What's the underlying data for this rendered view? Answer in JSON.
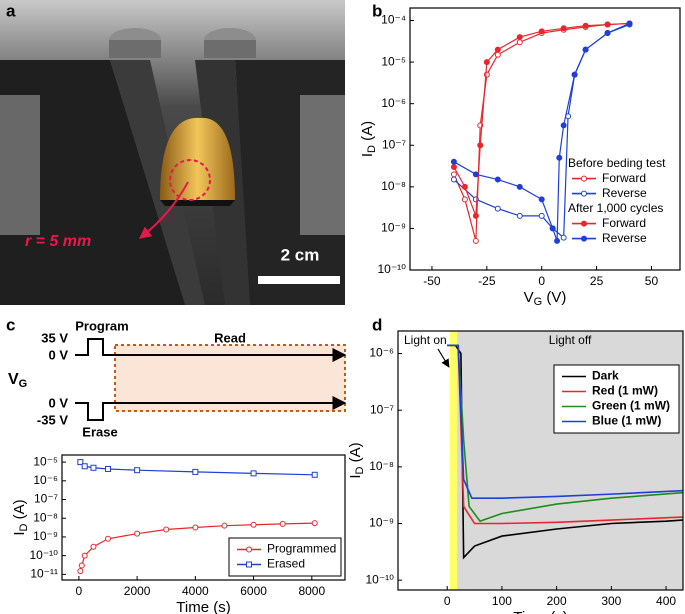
{
  "figure": {
    "panel_labels": [
      "a",
      "b",
      "c",
      "d"
    ],
    "photo": {
      "radius_label": "r = 5 mm",
      "scale_label": "2 cm"
    }
  },
  "diagram_c": {
    "program": "Program",
    "read": "Read",
    "erase": "Erase",
    "v_high": "35 V",
    "v_zero_top": "0 V",
    "v_zero_bottom": "0 V",
    "v_low": "-35 V",
    "vg": {
      "main": "V",
      "sub": "G"
    }
  },
  "chart_data": [
    {
      "type": "line",
      "log_y": true,
      "x_label": {
        "main": "V",
        "sub": "G",
        "unit": " (V)"
      },
      "y_label": {
        "main": "I",
        "sub": "D",
        "unit": " (A)"
      },
      "xlim": [
        -60,
        63
      ],
      "ylim": [
        1e-10,
        0.0002
      ],
      "xticks": [
        -50,
        -25,
        0,
        25,
        50
      ],
      "yticks": [
        {
          "value": 1e-10,
          "label": "10⁻¹⁰"
        },
        {
          "value": 1e-09,
          "label": "10⁻⁹"
        },
        {
          "value": 1e-08,
          "label": "10⁻⁸"
        },
        {
          "value": 1e-07,
          "label": "10⁻⁷"
        },
        {
          "value": 1e-06,
          "label": "10⁻⁶"
        },
        {
          "value": 1e-05,
          "label": "10⁻⁵"
        },
        {
          "value": 0.0001,
          "label": "10⁻⁴"
        }
      ],
      "legend": "right",
      "legend_frame": false,
      "legend_groups": [
        "Before beding test",
        "After 1,000 cycles"
      ],
      "series": [
        {
          "name": "Forward",
          "group": 0,
          "color": "#e8262b",
          "marker": "open-circle",
          "x": [
            -40,
            -35,
            -30,
            -28,
            -25,
            -20,
            -10,
            0,
            10,
            20,
            30,
            40
          ],
          "values": [
            2e-08,
            5e-09,
            5e-10,
            3e-07,
            5e-06,
            1.5e-05,
            3e-05,
            5e-05,
            6e-05,
            7e-05,
            8e-05,
            8.5e-05
          ]
        },
        {
          "name": "Reverse",
          "group": 0,
          "color": "#1f3fd6",
          "marker": "open-circle",
          "x": [
            40,
            30,
            20,
            15,
            12,
            10,
            5,
            0,
            -10,
            -20,
            -30,
            -40
          ],
          "values": [
            8e-05,
            5e-05,
            2e-05,
            5e-06,
            5e-07,
            6e-10,
            1e-09,
            2e-09,
            2e-09,
            3e-09,
            5e-09,
            1.5e-08
          ]
        },
        {
          "name": "Forward",
          "group": 1,
          "color": "#e8262b",
          "marker": "filled-circle",
          "x": [
            -40,
            -35,
            -30,
            -28,
            -25,
            -20,
            -10,
            0,
            10,
            20,
            30,
            40
          ],
          "values": [
            3e-08,
            1e-08,
            2e-09,
            1e-07,
            1e-05,
            2e-05,
            4e-05,
            5.5e-05,
            6.5e-05,
            7.5e-05,
            8e-05,
            8.5e-05
          ]
        },
        {
          "name": "Reverse",
          "group": 1,
          "color": "#1f3fd6",
          "marker": "filled-circle",
          "x": [
            40,
            30,
            20,
            15,
            10,
            8,
            7,
            5,
            0,
            -10,
            -20,
            -30,
            -40
          ],
          "values": [
            8.5e-05,
            5e-05,
            2e-05,
            5e-06,
            3e-07,
            5e-08,
            5e-10,
            1e-09,
            5e-09,
            1e-08,
            1.5e-08,
            2e-08,
            4e-08
          ]
        }
      ]
    },
    {
      "type": "line",
      "log_y": true,
      "x_label": {
        "main": "Time (s)"
      },
      "y_label": {
        "main": "I",
        "sub": "D",
        "unit": " (A)"
      },
      "xlim": [
        -580,
        9140
      ],
      "ylim": [
        5e-12,
        2.4e-05
      ],
      "xticks": [
        0,
        2000,
        4000,
        6000,
        8000
      ],
      "yticks": [
        {
          "value": 1e-11,
          "label": "10⁻¹¹"
        },
        {
          "value": 1e-10,
          "label": "10⁻¹⁰"
        },
        {
          "value": 1e-09,
          "label": "10⁻⁹"
        },
        {
          "value": 1e-08,
          "label": "10⁻⁸"
        },
        {
          "value": 1e-07,
          "label": "10⁻⁷"
        },
        {
          "value": 1e-06,
          "label": "10⁻⁶"
        },
        {
          "value": 1e-05,
          "label": "10⁻⁵"
        }
      ],
      "legend": "lower right",
      "legend_frame": true,
      "series": [
        {
          "name": "Programmed",
          "color": "#e8262b",
          "marker": "open-circle",
          "x": [
            50,
            100,
            200,
            500,
            1000,
            2000,
            3000,
            4000,
            5000,
            6000,
            7000,
            8100
          ],
          "values": [
            1.5e-11,
            3e-11,
            1e-10,
            3e-10,
            8e-10,
            1.5e-09,
            2.5e-09,
            3.2e-09,
            4e-09,
            4.5e-09,
            5e-09,
            5.5e-09
          ]
        },
        {
          "name": "Erased",
          "color": "#1f3fd6",
          "marker": "open-square",
          "x": [
            50,
            200,
            500,
            1000,
            2000,
            4000,
            6000,
            8100
          ],
          "values": [
            1e-05,
            6e-06,
            5e-06,
            4.3e-06,
            3.7e-06,
            3e-06,
            2.5e-06,
            2.1e-06
          ]
        }
      ]
    },
    {
      "type": "line",
      "log_y": true,
      "x_label": {
        "main": "Time (s)"
      },
      "y_label": {
        "main": "I",
        "sub": "D",
        "unit": " (A)"
      },
      "xlim": [
        -90,
        431
      ],
      "ylim": [
        6.7e-11,
        2.5e-06
      ],
      "xticks": [
        0,
        100,
        200,
        300,
        400
      ],
      "yticks": [
        {
          "value": 1e-10,
          "label": "10⁻¹⁰"
        },
        {
          "value": 1e-09,
          "label": "10⁻⁹"
        },
        {
          "value": 1e-08,
          "label": "10⁻⁸"
        },
        {
          "value": 1e-07,
          "label": "10⁻⁷"
        },
        {
          "value": 1e-06,
          "label": "10⁻⁶"
        }
      ],
      "shaded_regions": [
        {
          "label": "Light on",
          "range": [
            5,
            18
          ],
          "color": "#ffff66"
        },
        {
          "label": "Light off",
          "range": [
            18,
            431
          ],
          "color": "#d9d9d9"
        }
      ],
      "legend": "upper right",
      "legend_frame": true,
      "legend_bold": true,
      "series": [
        {
          "name": "Dark",
          "color": "#000000",
          "x": [
            0,
            15,
            25,
            30,
            50,
            100,
            200,
            300,
            400,
            430
          ],
          "values": [
            1.4e-06,
            1.4e-06,
            1e-06,
            2.5e-10,
            4e-10,
            6e-10,
            8e-10,
            1e-09,
            1.1e-09,
            1.15e-09
          ]
        },
        {
          "name": "Red (1 mW)",
          "color": "#e8262b",
          "x": [
            0,
            20,
            30,
            50,
            100,
            200,
            300,
            430
          ],
          "values": [
            1.4e-06,
            1.4e-06,
            2e-09,
            1e-09,
            1e-09,
            1.05e-09,
            1.15e-09,
            1.3e-09
          ]
        },
        {
          "name": "Green (1 mW)",
          "color": "#1e8c1e",
          "x": [
            0,
            20,
            30,
            40,
            60,
            100,
            200,
            300,
            430
          ],
          "values": [
            1.4e-06,
            1.4e-06,
            3e-08,
            2e-09,
            1.1e-09,
            1.5e-09,
            2.2e-09,
            2.8e-09,
            3.5e-09
          ]
        },
        {
          "name": "Blue (1 mW)",
          "color": "#1f3fd6",
          "x": [
            0,
            20,
            30,
            45,
            100,
            200,
            300,
            430
          ],
          "values": [
            1.4e-06,
            1.4e-06,
            6e-09,
            2.8e-09,
            2.8e-09,
            3e-09,
            3.3e-09,
            3.8e-09
          ]
        }
      ]
    }
  ]
}
